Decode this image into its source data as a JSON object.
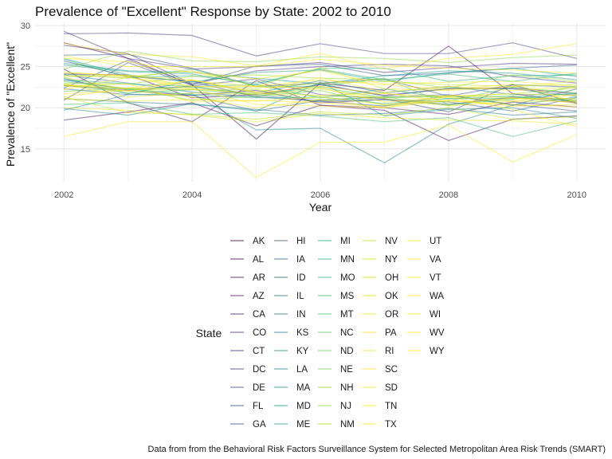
{
  "chart_data": {
    "type": "line",
    "title": "Prevalence of \"Excellent\" Response by State: 2002 to 2010",
    "xlabel": "Year",
    "ylabel": "Prevalence of \"Excellent\"",
    "caption": "Data from from the Behavioral Risk Factors Surveillance System for Selected Metropolitan Area Risk Trends (SMART)",
    "x": [
      2002,
      2003,
      2004,
      2005,
      2006,
      2007,
      2008,
      2009,
      2010
    ],
    "xticks": [
      2002,
      2004,
      2006,
      2008,
      2010
    ],
    "yticks": [
      15,
      20,
      25,
      30
    ],
    "xlim": [
      2001.55,
      2010.45
    ],
    "ylim": [
      11.0,
      30.3
    ],
    "grid": true,
    "legend_title": "State",
    "legend_position": "bottom",
    "palette": "viridis (alpha 0.5)",
    "series": [
      {
        "name": "AK",
        "color": "#440154",
        "values": [
          27.9,
          26.0,
          22.8,
          16.2,
          23.0,
          22.1,
          27.5,
          21.7,
          20.7
        ]
      },
      {
        "name": "AL",
        "color": "#460A5D",
        "values": [
          18.5,
          19.5,
          20.6,
          17.8,
          20.3,
          19.7,
          16.0,
          18.6,
          19.0
        ]
      },
      {
        "name": "AR",
        "color": "#471366",
        "values": [
          24.1,
          24.0,
          21.2,
          21.6,
          22.8,
          21.5,
          22.3,
          22.4,
          21.7
        ]
      },
      {
        "name": "AZ",
        "color": "#481C6E",
        "values": [
          24.7,
          20.6,
          18.3,
          23.3,
          20.3,
          20.0,
          19.2,
          20.7,
          20.1
        ]
      },
      {
        "name": "CA",
        "color": "#482475",
        "values": [
          22.7,
          22.1,
          21.5,
          22.1,
          20.6,
          21.0,
          20.4,
          21.3,
          20.6
        ]
      },
      {
        "name": "CO",
        "color": "#472D7B",
        "values": [
          29.3,
          26.0,
          24.7,
          25.0,
          25.5,
          24.3,
          24.9,
          25.4,
          25.3
        ]
      },
      {
        "name": "CT",
        "color": "#453581",
        "values": [
          27.6,
          26.6,
          22.9,
          24.5,
          25.0,
          25.3,
          25.1,
          23.8,
          23.0
        ]
      },
      {
        "name": "DC",
        "color": "#433D84",
        "values": [
          29.0,
          29.1,
          28.8,
          26.3,
          27.8,
          26.6,
          26.6,
          27.9,
          26.0
        ]
      },
      {
        "name": "DE",
        "color": "#404588",
        "values": [
          20.9,
          25.5,
          22.7,
          23.5,
          21.6,
          21.1,
          19.5,
          22.8,
          20.5
        ]
      },
      {
        "name": "FL",
        "color": "#3D4D8A",
        "values": [
          25.7,
          23.8,
          23.2,
          21.3,
          20.8,
          20.2,
          21.5,
          20.4,
          19.6
        ]
      },
      {
        "name": "GA",
        "color": "#39558C",
        "values": [
          26.4,
          26.5,
          24.8,
          22.6,
          23.0,
          23.5,
          21.4,
          22.8,
          22.5
        ]
      },
      {
        "name": "HI",
        "color": "#365C8D",
        "values": [
          22.4,
          25.8,
          22.8,
          25.1,
          25.3,
          23.9,
          24.2,
          24.8,
          25.2
        ]
      },
      {
        "name": "IA",
        "color": "#32648E",
        "values": [
          23.4,
          22.2,
          22.6,
          21.5,
          20.8,
          21.0,
          20.7,
          19.6,
          21.2
        ]
      },
      {
        "name": "ID",
        "color": "#2F6B8E",
        "values": [
          22.3,
          21.6,
          21.5,
          19.6,
          20.9,
          21.3,
          21.6,
          20.3,
          22.3
        ]
      },
      {
        "name": "IL",
        "color": "#2C728E",
        "values": [
          24.0,
          23.0,
          21.9,
          21.3,
          22.9,
          21.4,
          22.4,
          22.3,
          21.4
        ]
      },
      {
        "name": "IN",
        "color": "#29798E",
        "values": [
          21.1,
          20.7,
          20.4,
          19.8,
          19.1,
          19.3,
          19.9,
          19.1,
          19.5
        ]
      },
      {
        "name": "KS",
        "color": "#26828E",
        "values": [
          23.6,
          21.7,
          23.3,
          21.8,
          23.3,
          21.8,
          22.6,
          21.6,
          21.6
        ]
      },
      {
        "name": "KY",
        "color": "#23898E",
        "values": [
          19.7,
          21.6,
          21.7,
          17.3,
          17.5,
          13.3,
          18.0,
          20.3,
          21.3
        ]
      },
      {
        "name": "LA",
        "color": "#21908C",
        "values": [
          19.9,
          19.1,
          20.5,
          19.6,
          23.1,
          19.0,
          19.8,
          20.0,
          18.7
        ]
      },
      {
        "name": "MA",
        "color": "#1F978B",
        "values": [
          25.4,
          24.5,
          24.3,
          23.6,
          22.9,
          23.9,
          24.5,
          24.2,
          23.4
        ]
      },
      {
        "name": "MD",
        "color": "#1F9E89",
        "values": [
          26.0,
          24.0,
          23.1,
          24.3,
          24.6,
          23.2,
          24.3,
          24.8,
          23.8
        ]
      },
      {
        "name": "ME",
        "color": "#22A884",
        "values": [
          25.2,
          24.4,
          24.1,
          22.8,
          24.8,
          24.8,
          23.2,
          23.9,
          24.0
        ]
      },
      {
        "name": "MI",
        "color": "#27AD81",
        "values": [
          23.4,
          22.9,
          22.6,
          22.8,
          21.2,
          22.3,
          21.1,
          21.1,
          21.8
        ]
      },
      {
        "name": "MN",
        "color": "#2EB37C",
        "values": [
          25.9,
          23.7,
          23.9,
          23.0,
          24.7,
          23.4,
          24.1,
          23.2,
          24.2
        ]
      },
      {
        "name": "MO",
        "color": "#35B779",
        "values": [
          23.2,
          22.3,
          21.6,
          21.2,
          21.3,
          20.5,
          21.1,
          21.4,
          20.9
        ]
      },
      {
        "name": "MS",
        "color": "#42BE71",
        "values": [
          20.4,
          20.6,
          19.2,
          19.4,
          19.0,
          18.3,
          18.8,
          16.5,
          18.4
        ]
      },
      {
        "name": "MT",
        "color": "#50C46A",
        "values": [
          24.1,
          23.6,
          24.7,
          22.6,
          22.6,
          23.6,
          20.4,
          21.0,
          22.7
        ]
      },
      {
        "name": "NC",
        "color": "#5EC962",
        "values": [
          22.9,
          21.8,
          22.2,
          21.6,
          22.5,
          21.2,
          21.4,
          21.4,
          20.8
        ]
      },
      {
        "name": "ND",
        "color": "#6CCD5A",
        "values": [
          22.0,
          22.4,
          20.9,
          21.4,
          22.1,
          20.3,
          20.8,
          22.5,
          21.8
        ]
      },
      {
        "name": "NE",
        "color": "#7AD151",
        "values": [
          22.7,
          22.3,
          22.5,
          21.7,
          21.0,
          21.3,
          20.3,
          21.2,
          21.1
        ]
      },
      {
        "name": "NH",
        "color": "#8BD646",
        "values": [
          24.7,
          26.9,
          25.7,
          25.6,
          26.2,
          26.0,
          25.5,
          26.1,
          26.4
        ]
      },
      {
        "name": "NJ",
        "color": "#9CD93B",
        "values": [
          23.0,
          22.9,
          23.8,
          24.0,
          23.6,
          23.4,
          22.4,
          24.0,
          23.2
        ]
      },
      {
        "name": "NM",
        "color": "#ADDC30",
        "values": [
          23.7,
          22.2,
          22.2,
          22.2,
          21.4,
          21.3,
          21.4,
          21.7,
          22.4
        ]
      },
      {
        "name": "NV",
        "color": "#BDDF26",
        "values": [
          21.3,
          19.4,
          19.2,
          18.6,
          19.5,
          19.1,
          20.0,
          18.6,
          18.9
        ]
      },
      {
        "name": "NY",
        "color": "#CDE11D",
        "values": [
          23.8,
          24.0,
          22.6,
          22.4,
          23.0,
          23.2,
          22.8,
          22.6,
          22.8
        ]
      },
      {
        "name": "OH",
        "color": "#D8E219",
        "values": [
          22.9,
          21.3,
          21.8,
          21.6,
          22.3,
          21.1,
          20.2,
          20.8,
          20.8
        ]
      },
      {
        "name": "OK",
        "color": "#E2E418",
        "values": [
          20.0,
          19.7,
          19.1,
          18.3,
          19.3,
          18.8,
          18.5,
          18.4,
          18.0
        ]
      },
      {
        "name": "OR",
        "color": "#ECE51B",
        "values": [
          24.3,
          23.8,
          24.5,
          22.6,
          24.9,
          22.3,
          22.1,
          22.6,
          23.2
        ]
      },
      {
        "name": "PA",
        "color": "#F1E51D",
        "values": [
          22.8,
          22.4,
          22.3,
          21.7,
          21.5,
          21.8,
          20.7,
          21.1,
          21.1
        ]
      },
      {
        "name": "RI",
        "color": "#F6E620",
        "values": [
          23.9,
          23.7,
          22.6,
          22.6,
          23.4,
          22.8,
          22.2,
          22.9,
          20.7
        ]
      },
      {
        "name": "SC",
        "color": "#F8E621",
        "values": [
          21.7,
          22.1,
          21.3,
          20.0,
          21.0,
          20.0,
          20.9,
          20.2,
          20.4
        ]
      },
      {
        "name": "SD",
        "color": "#FAE622",
        "values": [
          21.3,
          22.4,
          23.3,
          22.6,
          22.4,
          20.7,
          21.3,
          20.8,
          21.6
        ]
      },
      {
        "name": "TN",
        "color": "#FBE723",
        "values": [
          22.2,
          23.7,
          22.3,
          20.4,
          20.2,
          20.0,
          21.3,
          19.8,
          17.7
        ]
      },
      {
        "name": "TX",
        "color": "#FCE724",
        "values": [
          21.1,
          20.8,
          21.0,
          20.8,
          21.3,
          20.4,
          20.9,
          20.4,
          20.1
        ]
      },
      {
        "name": "UT",
        "color": "#FCE725",
        "values": [
          27.8,
          26.5,
          26.2,
          25.1,
          26.6,
          24.7,
          26.0,
          26.5,
          27.8
        ]
      },
      {
        "name": "VA",
        "color": "#FDE725",
        "values": [
          26.0,
          25.6,
          24.3,
          23.5,
          24.5,
          22.9,
          23.1,
          23.2,
          22.6
        ]
      },
      {
        "name": "VT",
        "color": "#FDE725",
        "values": [
          26.3,
          25.0,
          25.0,
          25.0,
          25.9,
          25.2,
          24.8,
          24.6,
          24.2
        ]
      },
      {
        "name": "WA",
        "color": "#FDE725",
        "values": [
          24.3,
          23.9,
          23.4,
          21.9,
          23.7,
          21.9,
          22.6,
          22.1,
          22.5
        ]
      },
      {
        "name": "WI",
        "color": "#FDE725",
        "values": [
          22.9,
          22.0,
          23.4,
          21.8,
          22.6,
          21.7,
          21.4,
          21.7,
          21.5
        ]
      },
      {
        "name": "WV",
        "color": "#FDE725",
        "values": [
          16.5,
          18.3,
          18.3,
          11.5,
          15.8,
          15.8,
          17.9,
          13.4,
          16.7
        ]
      },
      {
        "name": "WY",
        "color": "#FDE725",
        "values": [
          22.6,
          22.9,
          20.7,
          20.9,
          20.6,
          20.1,
          21.5,
          21.2,
          20.6
        ]
      }
    ]
  }
}
